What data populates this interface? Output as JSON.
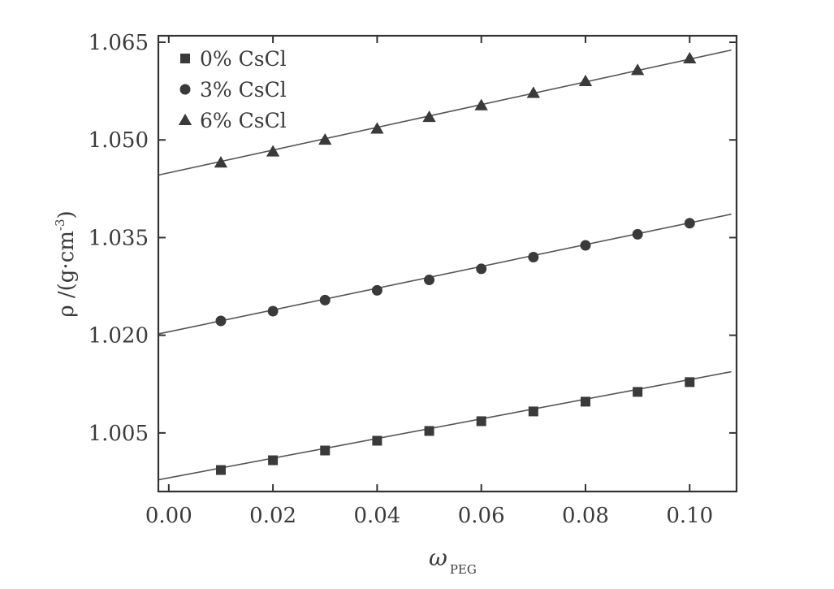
{
  "chart_data": {
    "type": "scatter",
    "xlabel": "ω",
    "xlabel_sub": "PEG",
    "ylabel_main": "ρ /(g·cm",
    "ylabel_sup": "-3",
    "ylabel_close": ")",
    "xlim": [
      -0.002,
      0.109
    ],
    "ylim": [
      0.996,
      1.066
    ],
    "xticks": [
      0.0,
      0.02,
      0.04,
      0.06,
      0.08,
      0.1
    ],
    "xtick_labels": [
      "0.00",
      "0.02",
      "0.04",
      "0.06",
      "0.08",
      "0.10"
    ],
    "yticks": [
      1.005,
      1.02,
      1.035,
      1.05,
      1.065
    ],
    "ytick_labels": [
      "1.005",
      "1.020",
      "1.035",
      "1.050",
      "1.065"
    ],
    "legend_position": "top-left",
    "grid": false,
    "x": [
      0.01,
      0.02,
      0.03,
      0.04,
      0.05,
      0.06,
      0.07,
      0.08,
      0.09,
      0.1
    ],
    "series": [
      {
        "name": "0% CsCl",
        "marker": "square",
        "values": [
          0.9993,
          1.0008,
          1.0023,
          1.0038,
          1.0053,
          1.0068,
          1.0083,
          1.0098,
          1.0113,
          1.0128
        ],
        "fit": {
          "x": [
            -0.002,
            0.108
          ],
          "y": [
            0.9978,
            1.0144
          ]
        }
      },
      {
        "name": "3% CsCl",
        "marker": "circle",
        "values": [
          1.0222,
          1.0237,
          1.0254,
          1.0269,
          1.0285,
          1.0302,
          1.032,
          1.0338,
          1.0355,
          1.0372
        ],
        "fit": {
          "x": [
            -0.002,
            0.108
          ],
          "y": [
            1.0202,
            1.0386
          ]
        }
      },
      {
        "name": "6% CsCl",
        "marker": "triangle",
        "values": [
          1.0465,
          1.0482,
          1.05,
          1.0517,
          1.0535,
          1.0553,
          1.0572,
          1.059,
          1.0607,
          1.0625
        ],
        "fit": {
          "x": [
            -0.002,
            0.108
          ],
          "y": [
            1.0446,
            1.0638
          ]
        }
      }
    ],
    "colors": {
      "marker": "#3a3a3a",
      "line": "#555555",
      "axis": "#333333"
    }
  }
}
